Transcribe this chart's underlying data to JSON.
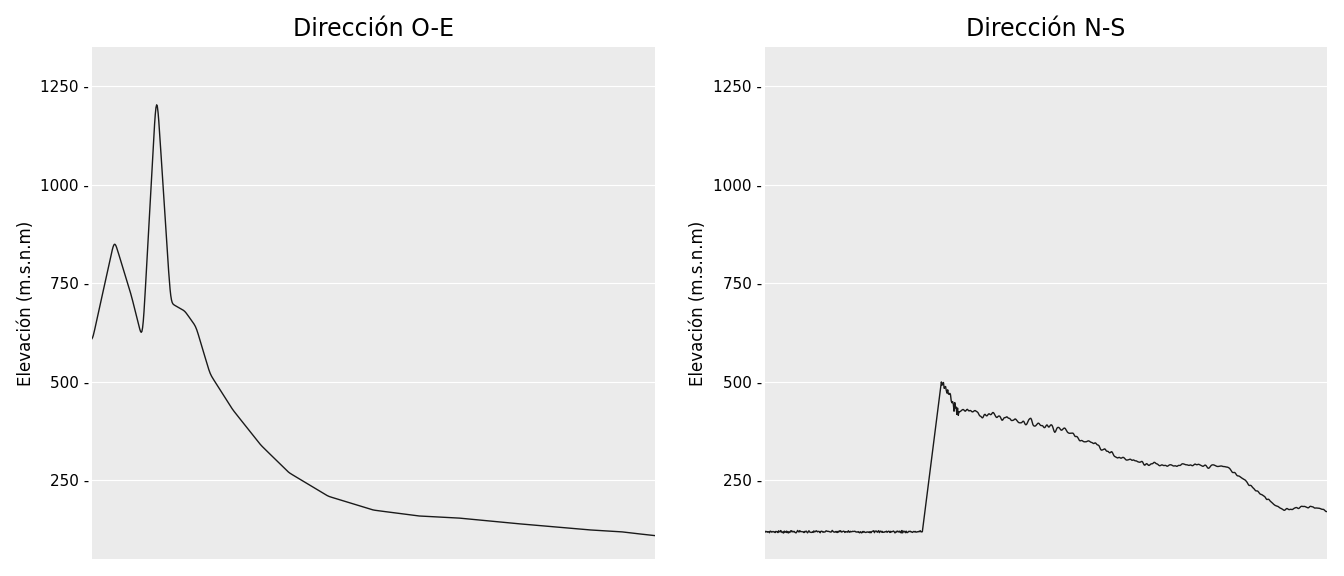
{
  "title_left": "Dirección O-E",
  "title_right": "Dirección N-S",
  "ylabel": "Elevación (m.s.n.m)",
  "background_color": "#EBEBEB",
  "line_color": "#1a1a1a",
  "line_width": 1.0,
  "ylim": [
    50,
    1350
  ],
  "yticks": [
    250,
    500,
    750,
    1000,
    1250
  ],
  "grid_color": "#ffffff",
  "title_fontsize": 17,
  "label_fontsize": 12,
  "tick_fontsize": 11
}
